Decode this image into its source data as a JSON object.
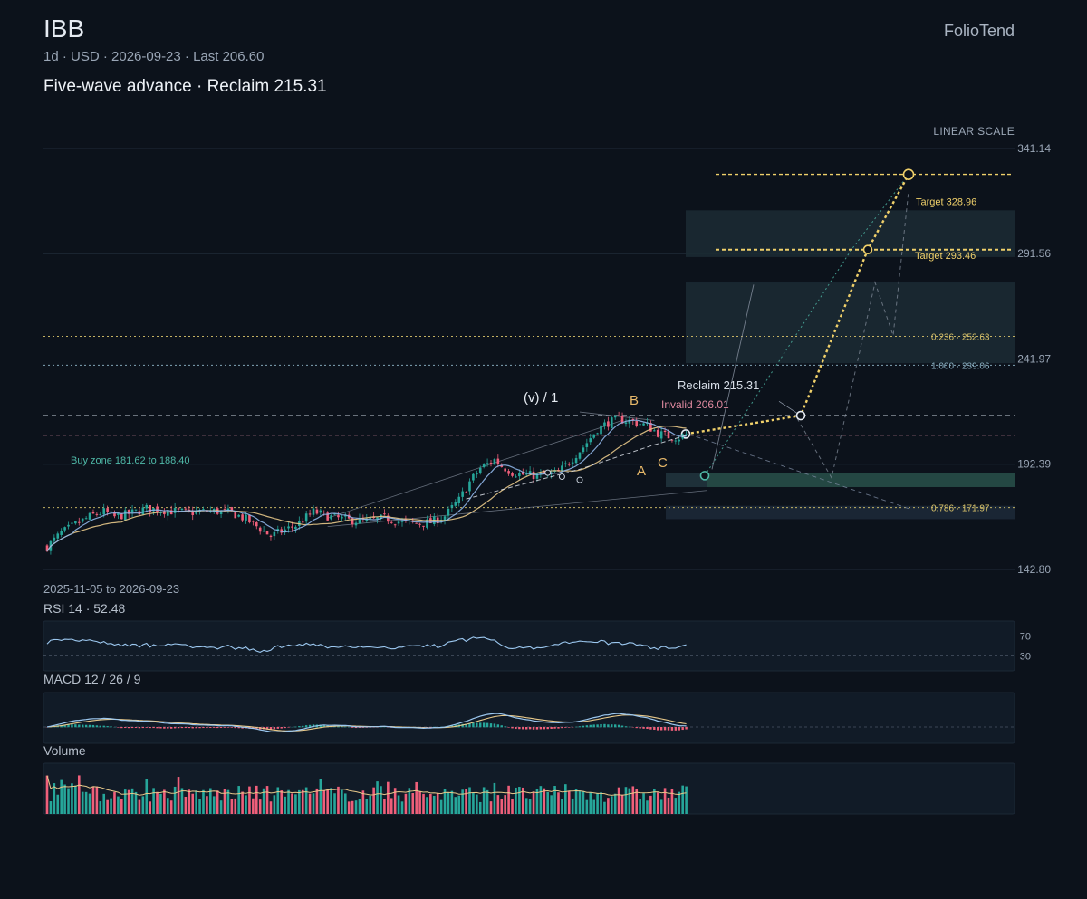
{
  "header": {
    "ticker": "IBB",
    "meta": "1d · USD · 2026-09-23 · Last 206.60",
    "brand": "FolioTend",
    "headline": "Five-wave advance · Reclaim 215.31",
    "scale_label": "LINEAR SCALE",
    "date_range": "2025-11-05 to 2026-09-23"
  },
  "colors": {
    "background": "#0c121b",
    "up": "#26a69a",
    "down": "#ef5f7a",
    "ma_fast": "#8fb6e8",
    "ma_slow": "#e8c98a",
    "target": "#f0d06a",
    "accent_teal": "#4fb9a8",
    "grid": "#1f2a38"
  },
  "chart_data": {
    "type": "candlestick",
    "y_axis": {
      "min": 142.8,
      "max": 341.14,
      "ticks": [
        "341.14",
        "291.56",
        "241.97",
        "192.39",
        "142.80"
      ]
    },
    "price_path": [
      [
        0,
        153.5
      ],
      [
        4,
        160
      ],
      [
        9,
        165
      ],
      [
        13,
        168.5
      ],
      [
        16,
        170
      ],
      [
        19,
        167.5
      ],
      [
        24,
        169.5
      ],
      [
        28,
        171.5
      ],
      [
        34,
        170.5
      ],
      [
        40,
        169.5
      ],
      [
        46,
        170.5
      ],
      [
        52,
        169.5
      ],
      [
        56,
        166.5
      ],
      [
        60,
        162
      ],
      [
        63,
        158.5
      ],
      [
        65,
        160
      ],
      [
        70,
        163.5
      ],
      [
        75,
        170
      ],
      [
        80,
        167.5
      ],
      [
        85,
        166
      ],
      [
        90,
        165.5
      ],
      [
        95,
        167
      ],
      [
        100,
        165
      ],
      [
        104,
        164.5
      ],
      [
        108,
        165
      ],
      [
        112,
        168
      ],
      [
        116,
        175.5
      ],
      [
        119,
        184
      ],
      [
        122,
        190.5
      ],
      [
        126,
        194.5
      ],
      [
        128,
        191.5
      ],
      [
        131,
        188.5
      ],
      [
        134,
        187.5
      ],
      [
        138,
        187
      ],
      [
        141,
        187.5
      ],
      [
        144,
        188.5
      ],
      [
        147,
        193.5
      ],
      [
        151,
        200.5
      ],
      [
        155,
        209
      ],
      [
        158,
        212
      ],
      [
        161,
        213.5
      ],
      [
        165,
        212.5
      ],
      [
        169,
        210.5
      ],
      [
        172,
        207
      ],
      [
        175,
        205.5
      ],
      [
        178,
        205
      ],
      [
        180,
        206.6
      ]
    ],
    "n_bars": 181,
    "rsi": {
      "period": 14,
      "value": 52.48,
      "levels": [
        70,
        30
      ]
    },
    "macd": {
      "fast": 12,
      "slow": 26,
      "signal": 9
    },
    "volume": {
      "label": "Volume"
    },
    "annotations": {
      "wave_label": "(v) / 1",
      "wave_letters": [
        "B",
        "A",
        "C"
      ],
      "reclaim": {
        "label": "Reclaim 215.31",
        "price": 215.31
      },
      "invalid": {
        "label": "Invalid 206.01",
        "price": 206.01
      },
      "buy_zone": {
        "label": "Buy zone 181.62 to 188.40",
        "low": 181.62,
        "high": 188.4
      },
      "fib_levels": [
        {
          "label": "0.236 · 252.63",
          "price": 252.63
        },
        {
          "label": "1.000 · 239.06",
          "price": 239.06
        },
        {
          "label": "0.786 · 171.97",
          "price": 171.97
        }
      ],
      "targets": [
        {
          "label": "Target 328.96",
          "price": 328.96
        },
        {
          "label": "Target 293.46",
          "price": 293.46
        }
      ]
    }
  }
}
